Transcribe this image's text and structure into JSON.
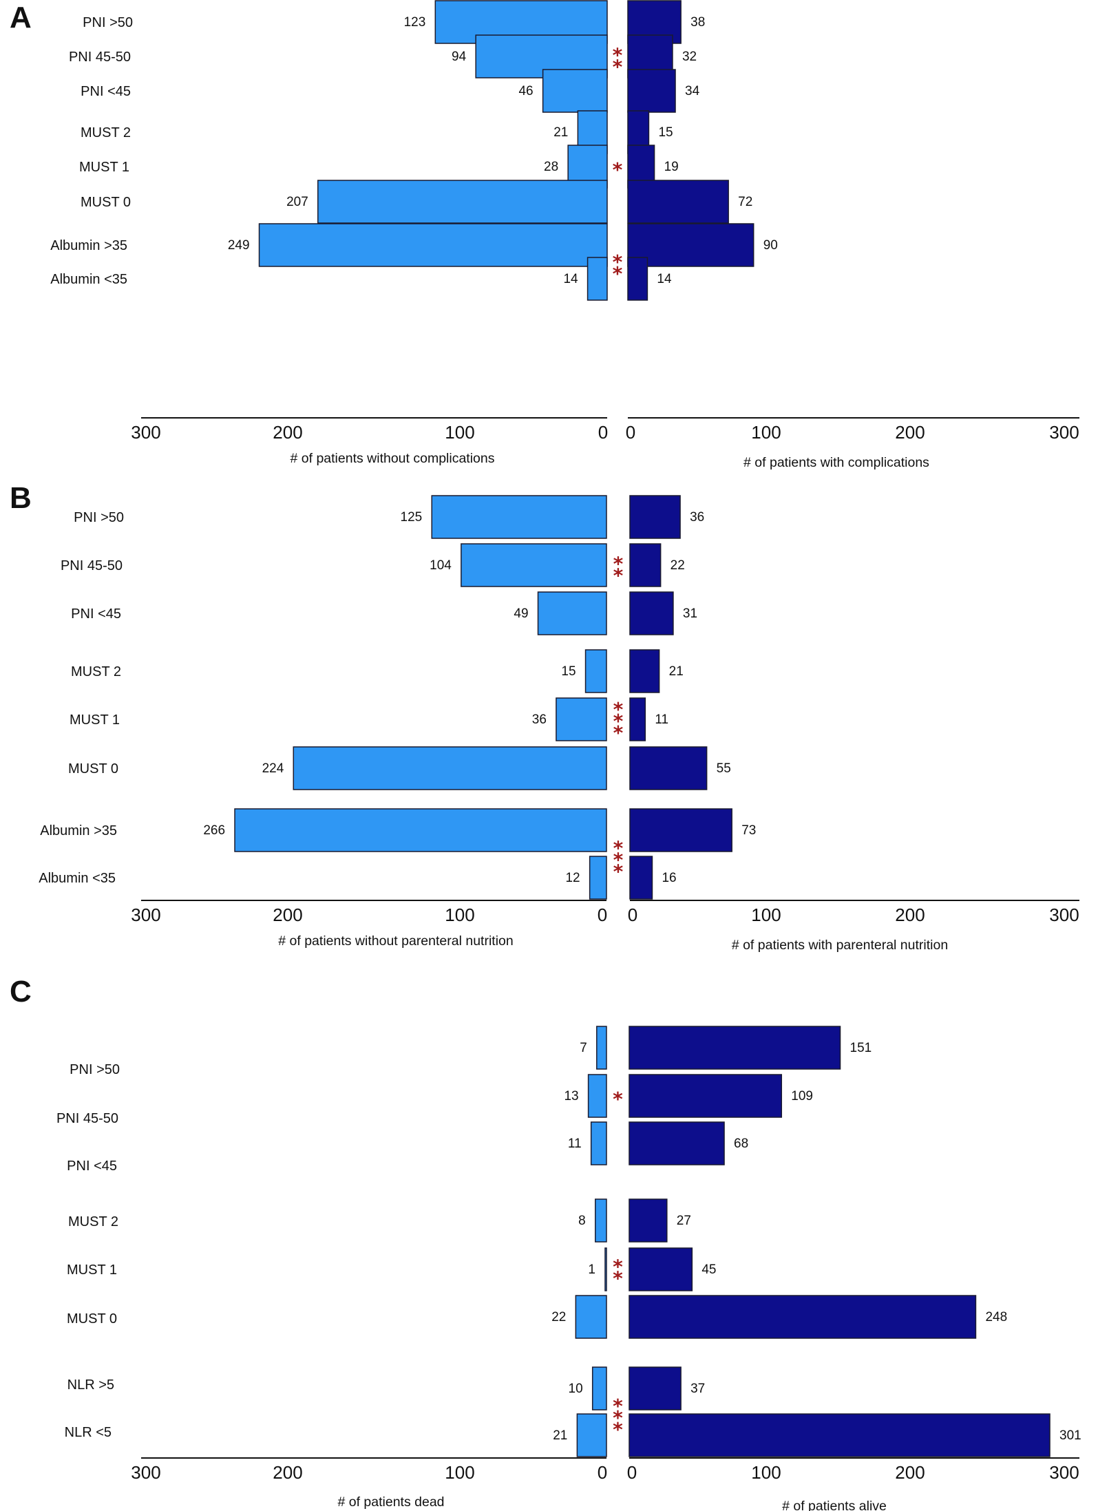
{
  "colors": {
    "left_bar": "#2f97f4",
    "right_bar": "#0d0e8c",
    "outline": "#1a1a2e",
    "star": "#a01c1c"
  },
  "chart_data": [
    {
      "panel": "A",
      "type": "bar",
      "orientation": "horizontal-butterfly",
      "xlim": [
        0,
        300
      ],
      "left_ticks": [
        "300",
        "200",
        "100",
        "0"
      ],
      "right_ticks": [
        "0",
        "100",
        "200",
        "300"
      ],
      "left_axis_label": "# of patients without complications",
      "right_axis_label": "# of patients with complications",
      "categories": [
        "PNI >50",
        "PNI 45-50",
        "PNI <45",
        "MUST 2",
        "MUST 1",
        "MUST 0",
        "Albumin >35",
        "Albumin <35"
      ],
      "left_values": [
        123,
        94,
        46,
        21,
        28,
        207,
        249,
        14
      ],
      "right_values": [
        38,
        32,
        34,
        15,
        19,
        72,
        90,
        14
      ],
      "significance": [
        {
          "group": "PNI",
          "marker": "**"
        },
        {
          "group": "MUST",
          "marker": "*"
        },
        {
          "group": "Albumin",
          "marker": "**"
        }
      ]
    },
    {
      "panel": "B",
      "type": "bar",
      "orientation": "horizontal-butterfly",
      "xlim": [
        0,
        300
      ],
      "left_ticks": [
        "300",
        "200",
        "100",
        "0"
      ],
      "right_ticks": [
        "0",
        "100",
        "200",
        "300"
      ],
      "left_axis_label": "# of patients without parenteral nutrition",
      "right_axis_label": "# of patients with parenteral nutrition",
      "categories": [
        "PNI >50",
        "PNI 45-50",
        "PNI <45",
        "MUST 2",
        "MUST 1",
        "MUST 0",
        "Albumin >35",
        "Albumin <35"
      ],
      "left_values": [
        125,
        104,
        49,
        15,
        36,
        224,
        266,
        12
      ],
      "right_values": [
        36,
        22,
        31,
        21,
        11,
        55,
        73,
        16
      ],
      "significance": [
        {
          "group": "PNI",
          "marker": "**"
        },
        {
          "group": "MUST",
          "marker": "***"
        },
        {
          "group": "Albumin",
          "marker": "***"
        }
      ]
    },
    {
      "panel": "C",
      "type": "bar",
      "orientation": "horizontal-butterfly",
      "xlim": [
        0,
        300
      ],
      "left_ticks": [
        "300",
        "200",
        "100",
        "0"
      ],
      "right_ticks": [
        "0",
        "100",
        "200",
        "300"
      ],
      "left_axis_label": "# of patients dead",
      "right_axis_label": "# of patients alive",
      "categories": [
        "PNI >50",
        "PNI 45-50",
        "PNI <45",
        "MUST 2",
        "MUST 1",
        "MUST 0",
        "NLR >5",
        "NLR <5"
      ],
      "left_values": [
        7,
        13,
        11,
        8,
        1,
        22,
        10,
        21
      ],
      "right_values": [
        151,
        109,
        68,
        27,
        45,
        248,
        37,
        301
      ],
      "significance": [
        {
          "group": "PNI",
          "marker": "*"
        },
        {
          "group": "MUST",
          "marker": "**"
        },
        {
          "group": "NLR",
          "marker": "***"
        }
      ]
    }
  ]
}
